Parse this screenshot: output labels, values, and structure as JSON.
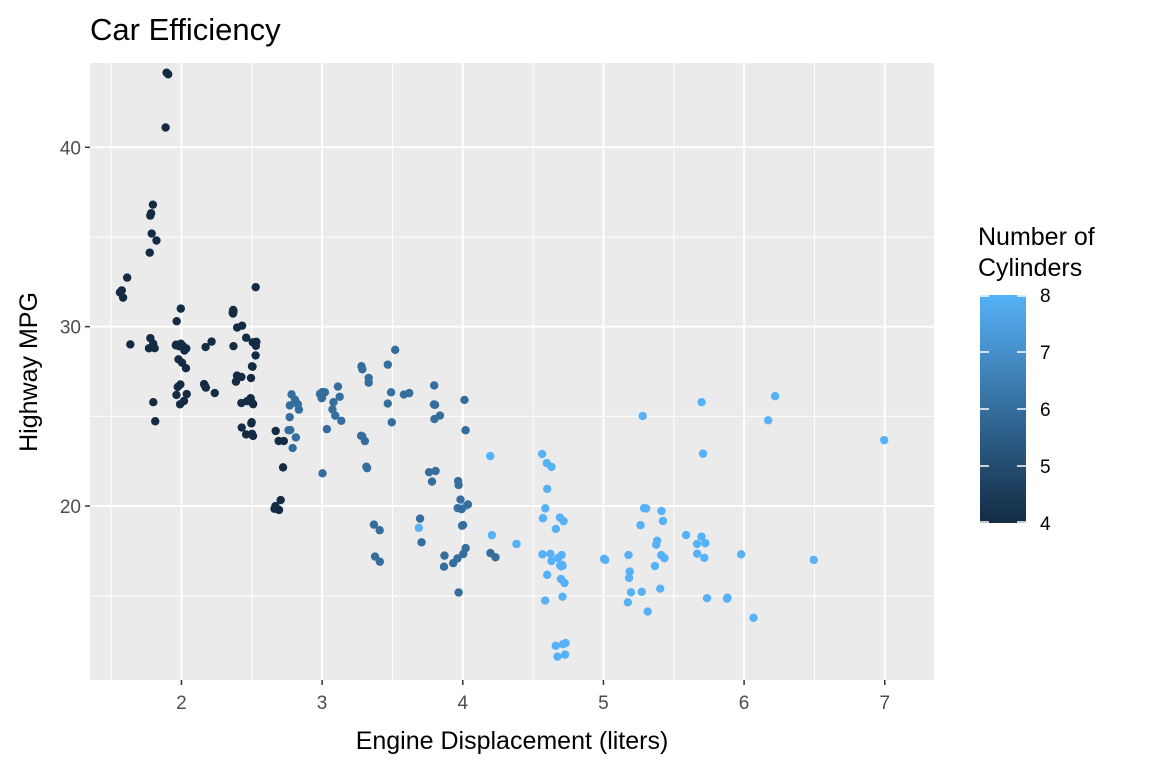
{
  "chart_data": {
    "type": "scatter",
    "title": "Car Efficiency",
    "xlabel": "Engine Displacement (liters)",
    "ylabel": "Highway MPG",
    "xlim": [
      1.35,
      7.35
    ],
    "ylim": [
      10.3,
      44.7
    ],
    "x_ticks": [
      2,
      3,
      4,
      5,
      6,
      7
    ],
    "y_ticks": [
      20,
      30,
      40
    ],
    "grid": true,
    "legend": {
      "title": [
        "Number of",
        "Cylinders"
      ],
      "position": "right",
      "type": "gradient",
      "range": [
        4,
        8
      ],
      "ticks": [
        4,
        5,
        6,
        7,
        8
      ],
      "color_low": "#132B43",
      "color_high": "#56B1F7"
    },
    "color_variable": "cyl",
    "points": [
      [
        1.8,
        29,
        4
      ],
      [
        1.8,
        29,
        4
      ],
      [
        2.0,
        31,
        4
      ],
      [
        2.0,
        30,
        4
      ],
      [
        2.8,
        26,
        6
      ],
      [
        2.8,
        26,
        6
      ],
      [
        3.1,
        27,
        6
      ],
      [
        1.8,
        26,
        4
      ],
      [
        1.8,
        25,
        4
      ],
      [
        2.0,
        28,
        4
      ],
      [
        2.0,
        27,
        4
      ],
      [
        2.8,
        25,
        6
      ],
      [
        2.8,
        25,
        6
      ],
      [
        3.1,
        25,
        6
      ],
      [
        3.1,
        25,
        6
      ],
      [
        2.8,
        24,
        6
      ],
      [
        3.1,
        25,
        6
      ],
      [
        4.2,
        23,
        8
      ],
      [
        5.3,
        20,
        8
      ],
      [
        5.3,
        15,
        8
      ],
      [
        5.3,
        20,
        8
      ],
      [
        5.7,
        17,
        8
      ],
      [
        6.0,
        17,
        8
      ],
      [
        5.7,
        26,
        8
      ],
      [
        5.7,
        23,
        8
      ],
      [
        6.2,
        26,
        8
      ],
      [
        6.2,
        25,
        8
      ],
      [
        7.0,
        24,
        8
      ],
      [
        5.3,
        19,
        8
      ],
      [
        5.3,
        14,
        8
      ],
      [
        5.7,
        15,
        8
      ],
      [
        6.5,
        17,
        8
      ],
      [
        2.4,
        27,
        4
      ],
      [
        2.4,
        30,
        4
      ],
      [
        3.1,
        26,
        6
      ],
      [
        3.5,
        29,
        6
      ],
      [
        3.6,
        26,
        6
      ],
      [
        2.4,
        24,
        4
      ],
      [
        3.0,
        24,
        6
      ],
      [
        3.3,
        22,
        6
      ],
      [
        3.3,
        24,
        6
      ],
      [
        3.3,
        24,
        6
      ],
      [
        3.3,
        24,
        6
      ],
      [
        3.3,
        22,
        6
      ],
      [
        3.8,
        21,
        6
      ],
      [
        3.8,
        22,
        6
      ],
      [
        3.8,
        22,
        6
      ],
      [
        4.0,
        21,
        6
      ],
      [
        3.7,
        19,
        6
      ],
      [
        3.7,
        18,
        6
      ],
      [
        3.9,
        17,
        6
      ],
      [
        3.9,
        17,
        6
      ],
      [
        4.7,
        19,
        8
      ],
      [
        4.7,
        19,
        8
      ],
      [
        4.7,
        12,
        8
      ],
      [
        5.2,
        17,
        8
      ],
      [
        5.2,
        15,
        8
      ],
      [
        3.9,
        17,
        6
      ],
      [
        4.7,
        17,
        8
      ],
      [
        4.7,
        12,
        8
      ],
      [
        4.7,
        17,
        8
      ],
      [
        5.2,
        16,
        8
      ],
      [
        5.7,
        18,
        8
      ],
      [
        5.9,
        15,
        8
      ],
      [
        4.7,
        16,
        8
      ],
      [
        4.7,
        12,
        8
      ],
      [
        4.7,
        17,
        8
      ],
      [
        4.7,
        17,
        8
      ],
      [
        4.7,
        16,
        8
      ],
      [
        4.7,
        12,
        8
      ],
      [
        5.2,
        15,
        8
      ],
      [
        5.2,
        16,
        8
      ],
      [
        5.7,
        17,
        8
      ],
      [
        5.9,
        15,
        8
      ],
      [
        4.6,
        17,
        8
      ],
      [
        5.4,
        17,
        8
      ],
      [
        5.4,
        18,
        8
      ],
      [
        4.0,
        17,
        6
      ],
      [
        4.0,
        19,
        6
      ],
      [
        4.0,
        17,
        6
      ],
      [
        4.0,
        19,
        6
      ],
      [
        4.6,
        19,
        8
      ],
      [
        5.0,
        17,
        8
      ],
      [
        4.2,
        17,
        6
      ],
      [
        4.2,
        17,
        6
      ],
      [
        4.6,
        17,
        8
      ],
      [
        4.6,
        16,
        8
      ],
      [
        4.6,
        17,
        8
      ],
      [
        5.4,
        15,
        8
      ],
      [
        5.4,
        17,
        8
      ],
      [
        3.8,
        26,
        6
      ],
      [
        3.8,
        25,
        6
      ],
      [
        4.0,
        26,
        6
      ],
      [
        4.0,
        24,
        6
      ],
      [
        4.6,
        21,
        8
      ],
      [
        4.6,
        22,
        8
      ],
      [
        4.6,
        23,
        8
      ],
      [
        4.6,
        22,
        8
      ],
      [
        5.4,
        20,
        8
      ],
      [
        1.6,
        33,
        4
      ],
      [
        1.6,
        32,
        4
      ],
      [
        1.6,
        32,
        4
      ],
      [
        1.6,
        29,
        4
      ],
      [
        1.6,
        32,
        4
      ],
      [
        1.8,
        34,
        4
      ],
      [
        1.8,
        36,
        4
      ],
      [
        1.8,
        36,
        4
      ],
      [
        2.0,
        29,
        4
      ],
      [
        2.4,
        26,
        4
      ],
      [
        2.4,
        27,
        4
      ],
      [
        2.4,
        30,
        4
      ],
      [
        2.4,
        31,
        4
      ],
      [
        2.5,
        26,
        4
      ],
      [
        2.5,
        26,
        4
      ],
      [
        3.3,
        28,
        6
      ],
      [
        2.0,
        26,
        4
      ],
      [
        2.0,
        29,
        4
      ],
      [
        2.0,
        28,
        4
      ],
      [
        2.0,
        27,
        4
      ],
      [
        2.7,
        24,
        4
      ],
      [
        2.7,
        24,
        4
      ],
      [
        2.7,
        24,
        4
      ],
      [
        3.0,
        22,
        6
      ],
      [
        3.7,
        19,
        8
      ],
      [
        4.0,
        20,
        8
      ],
      [
        4.7,
        17,
        8
      ],
      [
        4.7,
        12,
        8
      ],
      [
        4.7,
        19,
        8
      ],
      [
        5.7,
        18,
        8
      ],
      [
        6.1,
        14,
        8
      ],
      [
        4.0,
        15,
        6
      ],
      [
        4.2,
        18,
        8
      ],
      [
        4.4,
        18,
        8
      ],
      [
        4.6,
        15,
        8
      ],
      [
        5.4,
        17,
        8
      ],
      [
        5.4,
        19,
        8
      ],
      [
        5.4,
        18,
        8
      ],
      [
        4.0,
        21,
        6
      ],
      [
        4.0,
        20,
        6
      ],
      [
        4.6,
        20,
        8
      ],
      [
        5.0,
        17,
        8
      ],
      [
        2.4,
        29,
        4
      ],
      [
        2.4,
        27,
        4
      ],
      [
        2.5,
        24,
        4
      ],
      [
        2.5,
        24,
        4
      ],
      [
        3.5,
        26,
        6
      ],
      [
        3.5,
        26,
        6
      ],
      [
        3.0,
        26,
        6
      ],
      [
        3.0,
        26,
        6
      ],
      [
        3.5,
        25,
        6
      ],
      [
        3.3,
        27,
        6
      ],
      [
        3.3,
        28,
        6
      ],
      [
        4.0,
        20,
        6
      ],
      [
        5.6,
        18,
        8
      ],
      [
        3.1,
        26,
        6
      ],
      [
        3.8,
        26,
        6
      ],
      [
        3.8,
        27,
        6
      ],
      [
        3.8,
        25,
        6
      ],
      [
        5.3,
        25,
        8
      ],
      [
        2.5,
        28,
        4
      ],
      [
        2.5,
        29,
        4
      ],
      [
        2.5,
        25,
        4
      ],
      [
        2.5,
        24,
        4
      ],
      [
        2.5,
        25,
        4
      ],
      [
        2.5,
        26,
        4
      ],
      [
        2.5,
        26,
        4
      ],
      [
        2.5,
        27,
        4
      ],
      [
        2.2,
        26,
        4
      ],
      [
        2.2,
        27,
        4
      ],
      [
        2.5,
        28,
        4
      ],
      [
        2.5,
        32,
        4
      ],
      [
        2.7,
        20,
        4
      ],
      [
        2.7,
        20,
        4
      ],
      [
        3.4,
        19,
        6
      ],
      [
        3.4,
        17,
        6
      ],
      [
        4.0,
        20,
        6
      ],
      [
        4.7,
        17,
        8
      ],
      [
        2.2,
        29,
        4
      ],
      [
        2.2,
        27,
        4
      ],
      [
        2.4,
        31,
        4
      ],
      [
        2.4,
        31,
        4
      ],
      [
        3.0,
        26,
        6
      ],
      [
        3.0,
        26,
        6
      ],
      [
        3.5,
        28,
        6
      ],
      [
        2.2,
        27,
        4
      ],
      [
        2.2,
        29,
        4
      ],
      [
        2.4,
        31,
        4
      ],
      [
        2.4,
        31,
        4
      ],
      [
        3.0,
        26,
        6
      ],
      [
        3.0,
        26,
        6
      ],
      [
        3.3,
        27,
        6
      ],
      [
        1.8,
        35,
        4
      ],
      [
        1.8,
        37,
        4
      ],
      [
        1.8,
        35,
        4
      ],
      [
        4.7,
        15,
        8
      ],
      [
        5.7,
        18,
        8
      ],
      [
        2.7,
        20,
        4
      ],
      [
        2.7,
        20,
        4
      ],
      [
        2.7,
        22,
        4
      ],
      [
        3.4,
        17,
        6
      ],
      [
        3.4,
        19,
        6
      ],
      [
        4.0,
        18,
        6
      ],
      [
        4.0,
        20,
        6
      ],
      [
        2.0,
        29,
        4
      ],
      [
        2.0,
        26,
        4
      ],
      [
        2.0,
        29,
        4
      ],
      [
        2.0,
        29,
        4
      ],
      [
        2.8,
        24,
        6
      ],
      [
        1.9,
        44,
        4
      ],
      [
        2.0,
        29,
        4
      ],
      [
        2.0,
        26,
        4
      ],
      [
        2.0,
        29,
        4
      ],
      [
        2.0,
        29,
        4
      ],
      [
        2.5,
        29,
        4
      ],
      [
        2.5,
        29,
        4
      ],
      [
        2.8,
        23,
        6
      ],
      [
        2.8,
        24,
        6
      ],
      [
        1.9,
        44,
        4
      ],
      [
        1.9,
        41,
        4
      ],
      [
        2.0,
        29,
        4
      ],
      [
        2.0,
        26,
        4
      ],
      [
        2.5,
        28,
        4
      ],
      [
        2.5,
        29,
        4
      ],
      [
        1.8,
        29,
        4
      ],
      [
        1.8,
        29,
        4
      ],
      [
        2.0,
        28,
        4
      ],
      [
        2.0,
        29,
        4
      ],
      [
        2.8,
        26,
        6
      ],
      [
        2.8,
        26,
        6
      ],
      [
        3.6,
        26,
        6
      ]
    ]
  }
}
